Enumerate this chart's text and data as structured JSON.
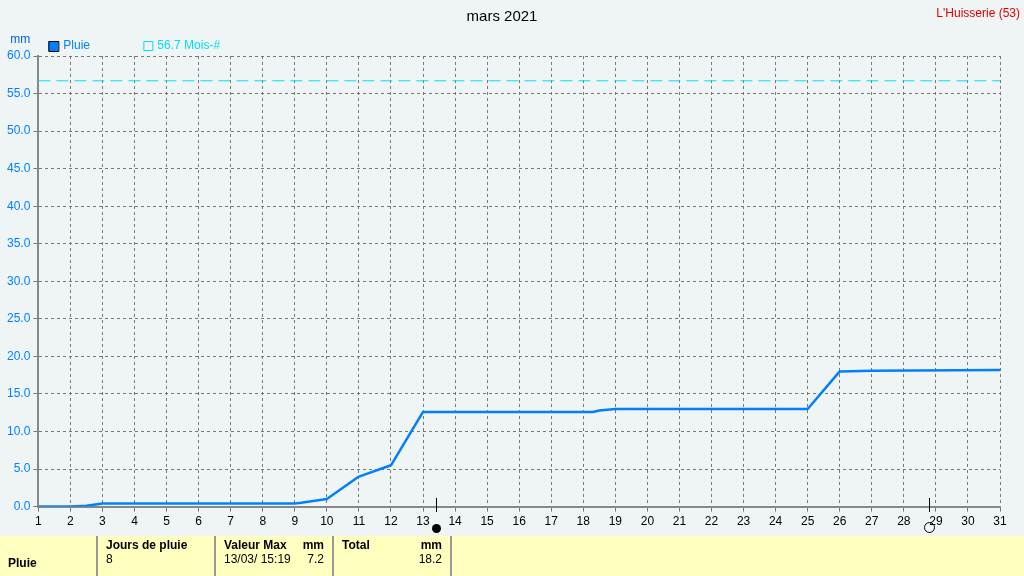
{
  "chart_data": {
    "type": "line",
    "title": "mars 2021",
    "ylabel": "mm",
    "x": [
      1,
      2,
      2.5,
      3,
      9,
      9.2,
      10,
      11,
      12,
      13,
      18.3,
      18.5,
      19,
      25,
      26,
      27,
      31
    ],
    "series": [
      {
        "name": "Pluie",
        "color": "#0080ff",
        "values": [
          0,
          0,
          0.1,
          0.4,
          0.4,
          0.5,
          1.0,
          4.0,
          5.5,
          12.6,
          12.6,
          12.8,
          13.0,
          13.0,
          18.0,
          18.1,
          18.2
        ]
      }
    ],
    "xlim": [
      1,
      31
    ],
    "xticks": [
      1,
      2,
      3,
      4,
      5,
      6,
      7,
      8,
      9,
      10,
      11,
      12,
      13,
      14,
      15,
      16,
      17,
      18,
      19,
      20,
      21,
      22,
      23,
      24,
      25,
      26,
      27,
      28,
      29,
      30,
      31
    ],
    "ylim": [
      0,
      60
    ],
    "yticks": [
      {
        "value": 0,
        "label": "0.0"
      },
      {
        "value": 5,
        "label": "5.0"
      },
      {
        "value": 10,
        "label": "10.0"
      },
      {
        "value": 15,
        "label": "15.0"
      },
      {
        "value": 20,
        "label": "20.0"
      },
      {
        "value": 25,
        "label": "25.0"
      },
      {
        "value": 30,
        "label": "30.0"
      },
      {
        "value": 35,
        "label": "35.0"
      },
      {
        "value": 40,
        "label": "40.0"
      },
      {
        "value": 45,
        "label": "45.0"
      },
      {
        "value": 50,
        "label": "50.0"
      },
      {
        "value": 55,
        "label": "55.0"
      },
      {
        "value": 60,
        "label": "60.0"
      }
    ],
    "ref_lines": [
      {
        "axis": "y",
        "value": 56.7,
        "label": "56.7 Mois-#",
        "color": "#00e0f0",
        "line_style": "dashed"
      }
    ],
    "grid": true,
    "legend": "top left",
    "marker": "none",
    "line_style": "solid",
    "annotations": [
      "L'Huisserie (53)",
      "Pluie",
      "Jours de pluie",
      "8",
      "Valeur Max",
      "mm",
      "13/03/ 15:19",
      "7.2",
      "Total",
      "mm",
      "18.2"
    ]
  }
}
